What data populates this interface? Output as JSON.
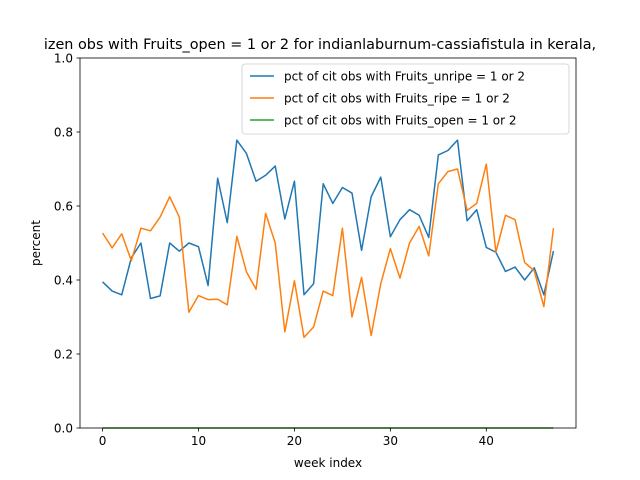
{
  "chart_data": {
    "type": "line",
    "title": "izen obs with Fruits_open = 1 or 2 for indianlaburnum-cassiafistula in kerala,",
    "xlabel": "week index",
    "ylabel": "percent",
    "xlim": [
      -2.35,
      49.35
    ],
    "ylim": [
      0.0,
      1.0
    ],
    "xticks": [
      0,
      10,
      20,
      30,
      40
    ],
    "yticks": [
      0.0,
      0.2,
      0.4,
      0.6,
      0.8,
      1.0
    ],
    "grid": false,
    "legend_position": "upper right",
    "x": [
      0,
      1,
      2,
      3,
      4,
      5,
      6,
      7,
      8,
      9,
      10,
      11,
      12,
      13,
      14,
      15,
      16,
      17,
      18,
      19,
      20,
      21,
      22,
      23,
      24,
      25,
      26,
      27,
      28,
      29,
      30,
      31,
      32,
      33,
      34,
      35,
      36,
      37,
      38,
      39,
      40,
      41,
      42,
      43,
      44,
      45,
      46,
      47
    ],
    "series": [
      {
        "name": "pct of cit obs with Fruits_unripe = 1 or 2",
        "color": "#1f77b4",
        "values": [
          0.395,
          0.37,
          0.36,
          0.46,
          0.5,
          0.35,
          0.357,
          0.5,
          0.478,
          0.5,
          0.49,
          0.385,
          0.675,
          0.555,
          0.778,
          0.742,
          0.667,
          0.683,
          0.708,
          0.565,
          0.667,
          0.36,
          0.39,
          0.66,
          0.607,
          0.65,
          0.635,
          0.48,
          0.625,
          0.678,
          0.517,
          0.563,
          0.59,
          0.575,
          0.515,
          0.738,
          0.75,
          0.778,
          0.56,
          0.59,
          0.488,
          0.475,
          0.423,
          0.435,
          0.4,
          0.433,
          0.36,
          0.478
        ]
      },
      {
        "name": "pct of cit obs with Fruits_ripe = 1 or 2",
        "color": "#ff7f0e",
        "values": [
          0.527,
          0.487,
          0.525,
          0.452,
          0.54,
          0.533,
          0.57,
          0.625,
          0.57,
          0.313,
          0.358,
          0.347,
          0.348,
          0.333,
          0.518,
          0.422,
          0.375,
          0.58,
          0.5,
          0.26,
          0.398,
          0.245,
          0.273,
          0.37,
          0.358,
          0.54,
          0.3,
          0.407,
          0.25,
          0.39,
          0.485,
          0.405,
          0.5,
          0.545,
          0.465,
          0.66,
          0.693,
          0.7,
          0.588,
          0.607,
          0.713,
          0.475,
          0.575,
          0.563,
          0.447,
          0.425,
          0.328,
          0.54
        ]
      },
      {
        "name": "pct of cit obs with Fruits_open = 1 or 2",
        "color": "#2ca02c",
        "values": [
          0,
          0,
          0,
          0,
          0,
          0,
          0,
          0,
          0,
          0,
          0,
          0,
          0,
          0,
          0,
          0,
          0,
          0,
          0,
          0,
          0,
          0,
          0,
          0,
          0,
          0,
          0,
          0,
          0,
          0,
          0,
          0,
          0,
          0,
          0,
          0,
          0,
          0,
          0,
          0,
          0,
          0,
          0,
          0,
          0,
          0,
          0,
          0
        ]
      }
    ]
  }
}
